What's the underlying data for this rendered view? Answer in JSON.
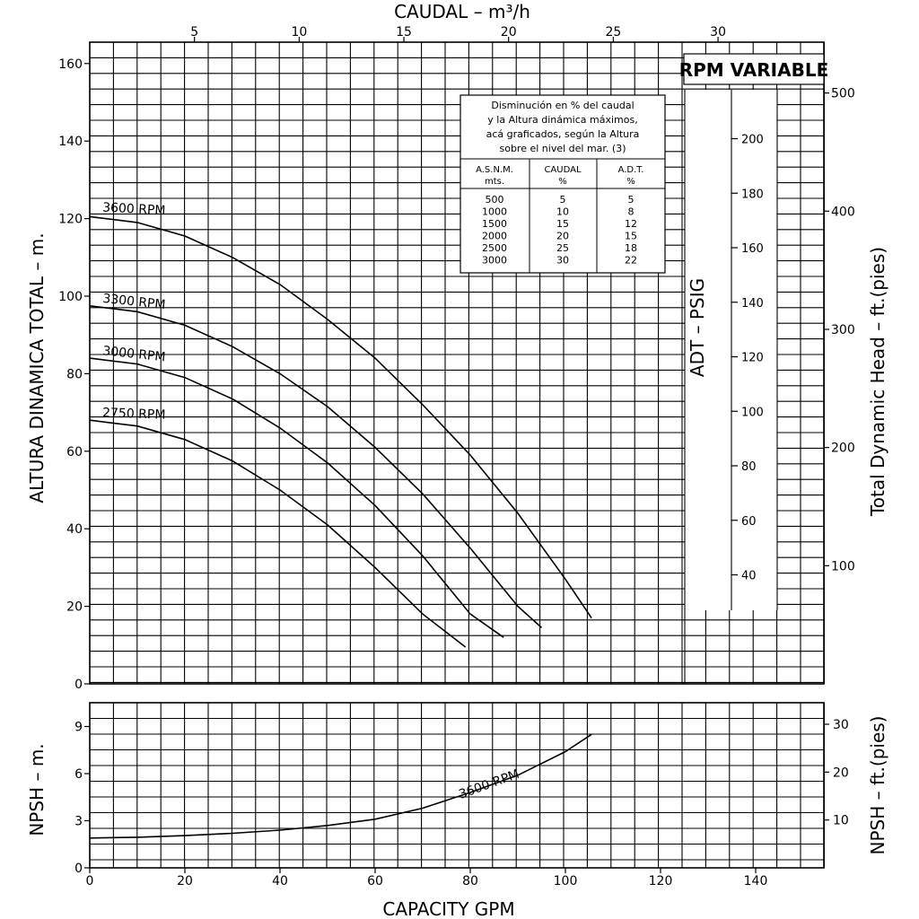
{
  "chart_data": [
    {
      "name": "main-head-chart",
      "type": "line",
      "title": "RPM VARIABLE",
      "xlabel_bottom": "CAPACITY GPM",
      "xlabel_top": "CAUDAL – m³/h",
      "ylabel_left": "ALTURA DINAMICA TOTAL – m.",
      "ylabel_right_outer": "Total Dynamic Head – ft.(pies)",
      "ylabel_right_inner": "ADT – PSIG",
      "xlim": [
        0,
        155
      ],
      "ylim": [
        0,
        162
      ],
      "x_ticks": [
        "0",
        "20",
        "40",
        "60",
        "80",
        "100",
        "120",
        "140"
      ],
      "x_tick_values": [
        0,
        20,
        40,
        60,
        80,
        100,
        120,
        140
      ],
      "top_ticks": [
        "5",
        "10",
        "15",
        "20",
        "25",
        "30"
      ],
      "top_tick_values": [
        5,
        10,
        15,
        20,
        25,
        30
      ],
      "y_ticks": [
        "0",
        "20",
        "40",
        "60",
        "80",
        "100",
        "120",
        "140",
        "160"
      ],
      "y_tick_values": [
        0,
        20,
        40,
        60,
        80,
        100,
        120,
        140,
        160
      ],
      "psig_ticks": [
        "40",
        "60",
        "80",
        "100",
        "120",
        "140",
        "160",
        "180",
        "200"
      ],
      "psig_tick_values": [
        40,
        60,
        80,
        100,
        120,
        140,
        160,
        180,
        200
      ],
      "ft_ticks": [
        "100",
        "200",
        "300",
        "400",
        "500"
      ],
      "ft_tick_values": [
        100,
        200,
        300,
        400,
        500
      ],
      "series": [
        {
          "name": "3600 RPM",
          "x": [
            0,
            10,
            20,
            30,
            40,
            50,
            60,
            70,
            80,
            90,
            100,
            105.5
          ],
          "y": [
            120.5,
            119,
            115.5,
            110,
            103,
            94,
            84,
            72,
            59,
            44,
            27,
            17
          ]
        },
        {
          "name": "3300 RPM",
          "x": [
            0,
            10,
            20,
            30,
            40,
            50,
            60,
            70,
            80,
            90,
            95
          ],
          "y": [
            97.5,
            96,
            92.5,
            87,
            80,
            71.5,
            61,
            49,
            35,
            20,
            14.5
          ]
        },
        {
          "name": "3000 RPM",
          "x": [
            0,
            10,
            20,
            30,
            40,
            50,
            60,
            70,
            80,
            87
          ],
          "y": [
            84,
            82.5,
            79,
            73.5,
            66,
            57,
            46,
            33,
            18,
            12
          ]
        },
        {
          "name": "2750 RPM",
          "x": [
            0,
            10,
            20,
            30,
            40,
            50,
            60,
            70,
            79
          ],
          "y": [
            68,
            66.5,
            63,
            57.5,
            50,
            41,
            30,
            18,
            9.5
          ]
        }
      ],
      "table": {
        "caption": [
          "Disminución en % del caudal",
          "y la Altura dinámica máximos,",
          "acá graficados, según la Altura",
          "sobre el nivel del mar. (3)"
        ],
        "headers": [
          [
            "A.S.N.M.",
            "mts."
          ],
          [
            "CAUDAL",
            "%"
          ],
          [
            "A.D.T.",
            "%"
          ]
        ],
        "rows": [
          [
            "500",
            "5",
            "5"
          ],
          [
            "1000",
            "10",
            "8"
          ],
          [
            "1500",
            "15",
            "12"
          ],
          [
            "2000",
            "20",
            "15"
          ],
          [
            "2500",
            "25",
            "18"
          ],
          [
            "3000",
            "30",
            "22"
          ]
        ]
      }
    },
    {
      "name": "npsh-chart",
      "type": "line",
      "ylabel_left": "NPSH – m.",
      "ylabel_right": "NPSH – ft.(pies)",
      "xlim": [
        0,
        155
      ],
      "ylim": [
        0,
        10.5
      ],
      "y_ticks": [
        "0",
        "3",
        "6",
        "9"
      ],
      "y_tick_values": [
        0,
        3,
        6,
        9
      ],
      "ft_ticks": [
        "10",
        "20",
        "30"
      ],
      "ft_tick_values": [
        10,
        20,
        30
      ],
      "series": [
        {
          "name": "3600 RPM",
          "x": [
            0,
            10,
            20,
            30,
            40,
            50,
            60,
            70,
            80,
            90,
            100,
            105.5
          ],
          "y": [
            1.9,
            1.95,
            2.05,
            2.2,
            2.4,
            2.7,
            3.1,
            3.8,
            4.8,
            5.9,
            7.4,
            8.5
          ]
        }
      ]
    }
  ]
}
